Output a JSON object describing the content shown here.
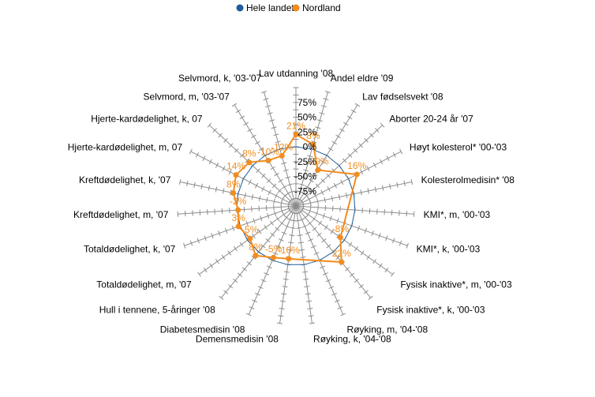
{
  "chart_data": {
    "type": "radar",
    "title": "",
    "legend": {
      "placement": "top-center"
    },
    "grid": true,
    "r_axis": {
      "min": -100,
      "max": 100,
      "ticks": [
        -75,
        -50,
        -25,
        0,
        25,
        50,
        75
      ],
      "tick_labels": [
        "-75%",
        "-50%",
        "-25%",
        "0%",
        "25%",
        "50%",
        "75%"
      ]
    },
    "categories": [
      "Lav utdanning '08",
      "Andel eldre '09",
      "Lav fødselsvekt '08",
      "Aborter 20-24 år '07",
      "Høyt kolesterol* '00-'03",
      "Kolesterolmedisin* '08",
      "KMI*, m, '00-'03",
      "KMI*, k, '00-'03",
      "Fysisk inaktive*, m, '00-'03",
      "Fysisk inaktive*, k, '00-'03",
      "Røyking, m, '04-'08",
      "Røyking, k, '04-'08",
      "Demensmedisin '08",
      "Diabetesmedisin '08",
      "Hull i tennene, 5-åringer '08",
      "Totaldødelighet, m, '07",
      "Totaldødelighet, k, '07",
      "Kreftdødelighet, m, '07",
      "Kreftdødelighet, k, '07",
      "Hjerte-kardødelighet, m, 07",
      "Hjerte-kardødelighet, k, 07",
      "Selvmord, m, '03-'07",
      "Selvmord, k, '03-'07"
    ],
    "series": [
      {
        "name": "Hele landet",
        "color": "#1F5C99",
        "values": [
          0,
          0,
          0,
          0,
          0,
          0,
          0,
          0,
          0,
          0,
          0,
          0,
          0,
          0,
          0,
          0,
          0,
          0,
          0,
          0,
          0,
          0,
          0
        ]
      },
      {
        "name": "Nordland",
        "color": "#F28C1E",
        "values": [
          21,
          8,
          -29,
          null,
          16,
          null,
          null,
          null,
          -8,
          22,
          null,
          null,
          -10,
          -5,
          8,
          -5,
          3,
          -2,
          8,
          14,
          8,
          -10,
          -12
        ],
        "data_labels": [
          "21%",
          "8%",
          "-29%",
          "",
          "16%",
          "",
          "",
          "",
          "-8%",
          "22%",
          "",
          "",
          "-10%",
          "-5%",
          "8%",
          "-5%",
          "3%",
          "-2%",
          "8%",
          "14%",
          "8%",
          "-10%",
          "-12%"
        ]
      }
    ]
  }
}
